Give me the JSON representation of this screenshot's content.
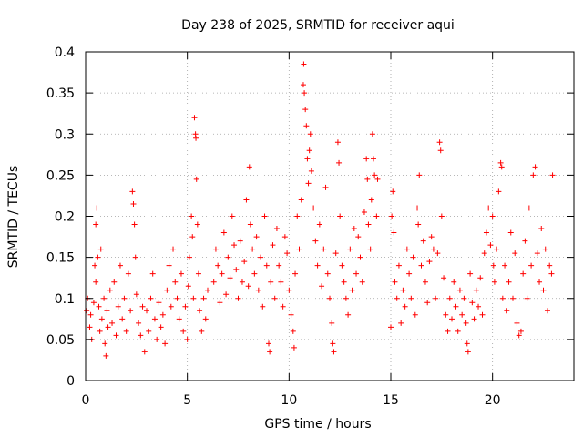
{
  "chart_data": {
    "type": "scatter",
    "title": "Day 238 of 2025, SRMTID for receiver aqui",
    "xlabel": "GPS time / hours",
    "ylabel": "SRMTID / TECUs",
    "xlim": [
      0,
      24
    ],
    "ylim": [
      0,
      0.4
    ],
    "x_ticks": [
      0,
      5,
      10,
      15,
      20
    ],
    "x_tick_labels": [
      "0",
      "5",
      "10",
      "15",
      "20"
    ],
    "y_ticks": [
      0,
      0.05,
      0.1,
      0.15,
      0.2,
      0.25,
      0.3,
      0.35,
      0.4
    ],
    "y_tick_labels": [
      "0",
      "0.05",
      "0.1",
      "0.15",
      "0.2",
      "0.25",
      "0.3",
      "0.35",
      "0.4"
    ],
    "grid": true,
    "legend": "none",
    "marker": "plus",
    "color": "#ff0000",
    "series": [
      {
        "name": "SRMTID",
        "points": [
          [
            0.05,
            0.085
          ],
          [
            0.1,
            0.1
          ],
          [
            0.2,
            0.065
          ],
          [
            0.25,
            0.08
          ],
          [
            0.3,
            0.05
          ],
          [
            0.4,
            0.095
          ],
          [
            0.45,
            0.14
          ],
          [
            0.5,
            0.19
          ],
          [
            0.5,
            0.12
          ],
          [
            0.55,
            0.21
          ],
          [
            0.6,
            0.15
          ],
          [
            0.65,
            0.09
          ],
          [
            0.7,
            0.06
          ],
          [
            0.75,
            0.16
          ],
          [
            0.8,
            0.075
          ],
          [
            0.9,
            0.1
          ],
          [
            0.95,
            0.045
          ],
          [
            1.0,
            0.03
          ],
          [
            1.05,
            0.085
          ],
          [
            1.1,
            0.065
          ],
          [
            1.2,
            0.11
          ],
          [
            1.3,
            0.07
          ],
          [
            1.4,
            0.12
          ],
          [
            1.5,
            0.055
          ],
          [
            1.6,
            0.09
          ],
          [
            1.7,
            0.14
          ],
          [
            1.8,
            0.075
          ],
          [
            1.9,
            0.1
          ],
          [
            2.0,
            0.06
          ],
          [
            2.1,
            0.13
          ],
          [
            2.2,
            0.085
          ],
          [
            2.3,
            0.23
          ],
          [
            2.35,
            0.215
          ],
          [
            2.4,
            0.19
          ],
          [
            2.45,
            0.15
          ],
          [
            2.5,
            0.105
          ],
          [
            2.6,
            0.07
          ],
          [
            2.7,
            0.055
          ],
          [
            2.8,
            0.09
          ],
          [
            2.9,
            0.035
          ],
          [
            3.0,
            0.085
          ],
          [
            3.1,
            0.06
          ],
          [
            3.2,
            0.1
          ],
          [
            3.3,
            0.13
          ],
          [
            3.4,
            0.075
          ],
          [
            3.5,
            0.05
          ],
          [
            3.6,
            0.095
          ],
          [
            3.7,
            0.065
          ],
          [
            3.8,
            0.08
          ],
          [
            3.9,
            0.045
          ],
          [
            4.0,
            0.11
          ],
          [
            4.1,
            0.14
          ],
          [
            4.2,
            0.09
          ],
          [
            4.3,
            0.16
          ],
          [
            4.4,
            0.12
          ],
          [
            4.5,
            0.1
          ],
          [
            4.6,
            0.075
          ],
          [
            4.7,
            0.13
          ],
          [
            4.8,
            0.06
          ],
          [
            4.9,
            0.09
          ],
          [
            5.0,
            0.05
          ],
          [
            5.05,
            0.115
          ],
          [
            5.1,
            0.15
          ],
          [
            5.2,
            0.2
          ],
          [
            5.25,
            0.175
          ],
          [
            5.3,
            0.1
          ],
          [
            5.35,
            0.32
          ],
          [
            5.4,
            0.3
          ],
          [
            5.42,
            0.295
          ],
          [
            5.45,
            0.245
          ],
          [
            5.5,
            0.19
          ],
          [
            5.55,
            0.13
          ],
          [
            5.6,
            0.085
          ],
          [
            5.7,
            0.06
          ],
          [
            5.8,
            0.1
          ],
          [
            5.9,
            0.075
          ],
          [
            6.0,
            0.11
          ],
          [
            6.3,
            0.12
          ],
          [
            6.4,
            0.16
          ],
          [
            6.5,
            0.14
          ],
          [
            6.6,
            0.095
          ],
          [
            6.7,
            0.13
          ],
          [
            6.8,
            0.18
          ],
          [
            6.9,
            0.105
          ],
          [
            7.0,
            0.15
          ],
          [
            7.1,
            0.125
          ],
          [
            7.2,
            0.2
          ],
          [
            7.3,
            0.165
          ],
          [
            7.4,
            0.135
          ],
          [
            7.5,
            0.1
          ],
          [
            7.6,
            0.17
          ],
          [
            7.7,
            0.12
          ],
          [
            7.8,
            0.145
          ],
          [
            7.9,
            0.22
          ],
          [
            8.0,
            0.115
          ],
          [
            8.05,
            0.26
          ],
          [
            8.1,
            0.19
          ],
          [
            8.2,
            0.16
          ],
          [
            8.3,
            0.13
          ],
          [
            8.4,
            0.175
          ],
          [
            8.5,
            0.11
          ],
          [
            8.6,
            0.15
          ],
          [
            8.7,
            0.09
          ],
          [
            8.8,
            0.2
          ],
          [
            8.9,
            0.14
          ],
          [
            9.0,
            0.045
          ],
          [
            9.05,
            0.035
          ],
          [
            9.1,
            0.12
          ],
          [
            9.2,
            0.165
          ],
          [
            9.3,
            0.1
          ],
          [
            9.4,
            0.185
          ],
          [
            9.5,
            0.14
          ],
          [
            9.6,
            0.12
          ],
          [
            9.7,
            0.09
          ],
          [
            9.8,
            0.175
          ],
          [
            9.9,
            0.155
          ],
          [
            10.0,
            0.11
          ],
          [
            10.1,
            0.08
          ],
          [
            10.2,
            0.06
          ],
          [
            10.25,
            0.04
          ],
          [
            10.3,
            0.13
          ],
          [
            10.4,
            0.2
          ],
          [
            10.5,
            0.16
          ],
          [
            10.6,
            0.22
          ],
          [
            10.7,
            0.36
          ],
          [
            10.72,
            0.385
          ],
          [
            10.75,
            0.35
          ],
          [
            10.8,
            0.33
          ],
          [
            10.85,
            0.31
          ],
          [
            10.9,
            0.27
          ],
          [
            10.95,
            0.24
          ],
          [
            11.0,
            0.28
          ],
          [
            11.05,
            0.3
          ],
          [
            11.1,
            0.255
          ],
          [
            11.2,
            0.21
          ],
          [
            11.3,
            0.17
          ],
          [
            11.4,
            0.14
          ],
          [
            11.5,
            0.19
          ],
          [
            11.6,
            0.115
          ],
          [
            11.7,
            0.16
          ],
          [
            11.8,
            0.235
          ],
          [
            11.9,
            0.13
          ],
          [
            12.0,
            0.1
          ],
          [
            12.1,
            0.07
          ],
          [
            12.15,
            0.045
          ],
          [
            12.2,
            0.035
          ],
          [
            12.3,
            0.155
          ],
          [
            12.4,
            0.29
          ],
          [
            12.45,
            0.265
          ],
          [
            12.5,
            0.2
          ],
          [
            12.6,
            0.14
          ],
          [
            12.7,
            0.12
          ],
          [
            12.8,
            0.1
          ],
          [
            12.9,
            0.08
          ],
          [
            13.0,
            0.16
          ],
          [
            13.1,
            0.11
          ],
          [
            13.2,
            0.185
          ],
          [
            13.3,
            0.13
          ],
          [
            13.4,
            0.175
          ],
          [
            13.5,
            0.15
          ],
          [
            13.6,
            0.12
          ],
          [
            13.7,
            0.205
          ],
          [
            13.8,
            0.27
          ],
          [
            13.85,
            0.245
          ],
          [
            13.9,
            0.19
          ],
          [
            14.0,
            0.16
          ],
          [
            14.05,
            0.22
          ],
          [
            14.1,
            0.3
          ],
          [
            14.15,
            0.27
          ],
          [
            14.2,
            0.25
          ],
          [
            14.3,
            0.2
          ],
          [
            14.35,
            0.245
          ],
          [
            15.0,
            0.065
          ],
          [
            15.05,
            0.2
          ],
          [
            15.1,
            0.23
          ],
          [
            15.15,
            0.18
          ],
          [
            15.2,
            0.12
          ],
          [
            15.3,
            0.1
          ],
          [
            15.4,
            0.14
          ],
          [
            15.5,
            0.07
          ],
          [
            15.6,
            0.11
          ],
          [
            15.7,
            0.09
          ],
          [
            15.8,
            0.16
          ],
          [
            15.9,
            0.13
          ],
          [
            16.0,
            0.1
          ],
          [
            16.1,
            0.15
          ],
          [
            16.2,
            0.08
          ],
          [
            16.3,
            0.21
          ],
          [
            16.35,
            0.19
          ],
          [
            16.4,
            0.25
          ],
          [
            16.5,
            0.14
          ],
          [
            16.6,
            0.17
          ],
          [
            16.7,
            0.12
          ],
          [
            16.8,
            0.095
          ],
          [
            16.9,
            0.145
          ],
          [
            17.0,
            0.175
          ],
          [
            17.1,
            0.16
          ],
          [
            17.2,
            0.1
          ],
          [
            17.3,
            0.155
          ],
          [
            17.4,
            0.29
          ],
          [
            17.45,
            0.28
          ],
          [
            17.5,
            0.2
          ],
          [
            17.6,
            0.125
          ],
          [
            17.7,
            0.08
          ],
          [
            17.8,
            0.06
          ],
          [
            17.9,
            0.1
          ],
          [
            18.0,
            0.075
          ],
          [
            18.1,
            0.12
          ],
          [
            18.2,
            0.09
          ],
          [
            18.3,
            0.06
          ],
          [
            18.4,
            0.11
          ],
          [
            18.5,
            0.08
          ],
          [
            18.6,
            0.1
          ],
          [
            18.7,
            0.07
          ],
          [
            18.75,
            0.045
          ],
          [
            18.8,
            0.035
          ],
          [
            18.9,
            0.13
          ],
          [
            19.0,
            0.095
          ],
          [
            19.1,
            0.075
          ],
          [
            19.2,
            0.11
          ],
          [
            19.3,
            0.09
          ],
          [
            19.4,
            0.125
          ],
          [
            19.5,
            0.08
          ],
          [
            19.6,
            0.155
          ],
          [
            19.7,
            0.18
          ],
          [
            19.8,
            0.21
          ],
          [
            19.9,
            0.165
          ],
          [
            20.0,
            0.2
          ],
          [
            20.05,
            0.14
          ],
          [
            20.1,
            0.12
          ],
          [
            20.2,
            0.16
          ],
          [
            20.3,
            0.23
          ],
          [
            20.4,
            0.265
          ],
          [
            20.45,
            0.26
          ],
          [
            20.5,
            0.1
          ],
          [
            20.6,
            0.14
          ],
          [
            20.7,
            0.085
          ],
          [
            20.8,
            0.12
          ],
          [
            20.9,
            0.18
          ],
          [
            21.0,
            0.1
          ],
          [
            21.1,
            0.155
          ],
          [
            21.2,
            0.07
          ],
          [
            21.3,
            0.055
          ],
          [
            21.4,
            0.06
          ],
          [
            21.5,
            0.13
          ],
          [
            21.6,
            0.17
          ],
          [
            21.7,
            0.1
          ],
          [
            21.8,
            0.21
          ],
          [
            21.9,
            0.14
          ],
          [
            22.0,
            0.25
          ],
          [
            22.1,
            0.26
          ],
          [
            22.2,
            0.155
          ],
          [
            22.3,
            0.12
          ],
          [
            22.4,
            0.185
          ],
          [
            22.5,
            0.11
          ],
          [
            22.6,
            0.16
          ],
          [
            22.7,
            0.085
          ],
          [
            22.8,
            0.14
          ],
          [
            22.9,
            0.13
          ],
          [
            22.95,
            0.25
          ]
        ]
      }
    ]
  }
}
